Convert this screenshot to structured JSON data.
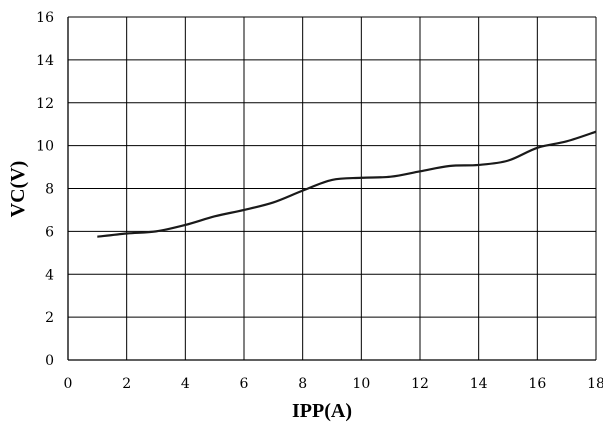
{
  "chart_data": {
    "type": "line",
    "title": "",
    "xlabel": "IPP(A)",
    "ylabel": "VC(V)",
    "xlim": [
      0,
      18
    ],
    "ylim": [
      0,
      16
    ],
    "x_ticks": [
      0,
      2,
      4,
      6,
      8,
      10,
      12,
      14,
      16,
      18
    ],
    "y_ticks": [
      0,
      2,
      4,
      6,
      8,
      10,
      12,
      14,
      16
    ],
    "grid": true,
    "legend": "none",
    "series": [
      {
        "color": "#1a1a1a",
        "x": [
          1,
          2,
          3,
          4,
          5,
          6,
          7,
          8,
          9,
          10,
          11,
          12,
          13,
          14,
          15,
          16,
          17,
          18
        ],
        "y": [
          5.75,
          5.9,
          6.0,
          6.3,
          6.7,
          7.0,
          7.35,
          7.9,
          8.4,
          8.5,
          8.55,
          8.8,
          9.05,
          9.1,
          9.3,
          9.9,
          10.2,
          10.65
        ]
      }
    ]
  }
}
